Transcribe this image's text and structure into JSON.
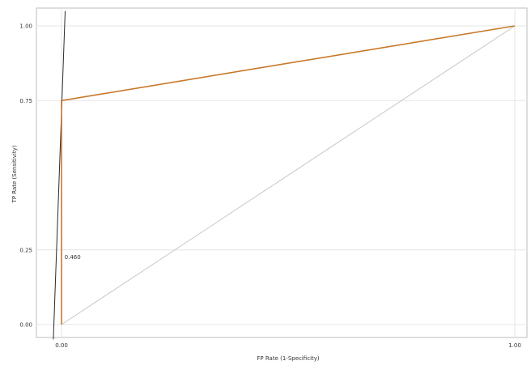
{
  "chart_data": {
    "type": "line",
    "title": "",
    "xlabel": "FP Rate (1-Specificity)",
    "ylabel": "TP Rate (Sensitivity)",
    "xlim": [
      0,
      1
    ],
    "ylim": [
      0,
      1
    ],
    "x_ticks": [
      {
        "value": 0,
        "label": "0.00"
      },
      {
        "value": 1,
        "label": "1.00"
      }
    ],
    "y_ticks": [
      {
        "value": 0,
        "label": "0.00"
      },
      {
        "value": 0.25,
        "label": "0.25"
      },
      {
        "value": 0.75,
        "label": "0.75"
      },
      {
        "value": 1,
        "label": "1.00"
      }
    ],
    "grid": true,
    "series": [
      {
        "name": "",
        "color": "#c8782a",
        "points": [
          [
            0,
            0
          ],
          [
            0,
            0.75
          ],
          [
            1,
            1
          ]
        ]
      },
      {
        "name": "",
        "color": "#c8c8c8",
        "points": [
          [
            0,
            0
          ],
          [
            1,
            1
          ]
        ]
      },
      {
        "name": "",
        "color": "#2a2a2a",
        "points": [
          [
            -0.018,
            -0.05
          ],
          [
            0.008,
            1.05
          ]
        ]
      }
    ],
    "annotations": [
      {
        "text": "0.460",
        "x": 0.003,
        "y": 0.22
      }
    ]
  }
}
